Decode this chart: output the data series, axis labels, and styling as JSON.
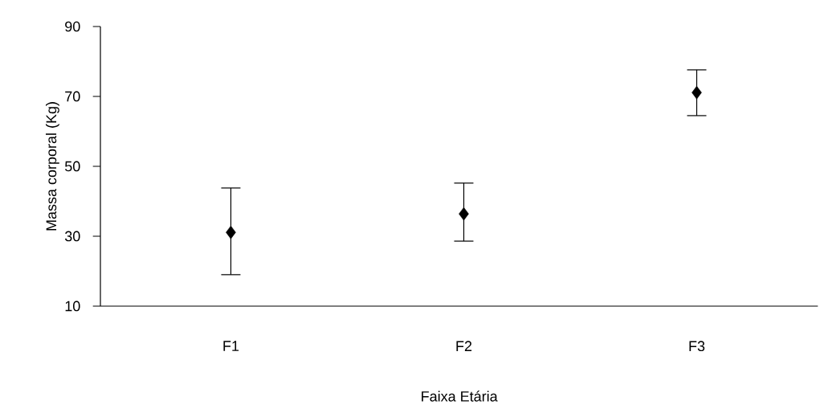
{
  "chart_data": {
    "type": "scatter",
    "xlabel": "Faixa Etária",
    "ylabel": "Massa corporal (Kg)",
    "categories": [
      "F1",
      "F2",
      "F3"
    ],
    "values": [
      31.1,
      36.4,
      71.1
    ],
    "errors": [
      [
        19.0,
        43.8
      ],
      [
        28.6,
        45.2
      ],
      [
        64.5,
        77.6
      ]
    ],
    "color": "#000000",
    "marker": "diamond",
    "ylim": [
      10,
      90
    ],
    "yticks": [
      10,
      30,
      50,
      70,
      90
    ]
  }
}
